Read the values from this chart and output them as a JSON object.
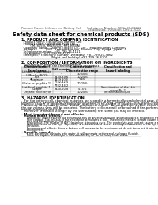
{
  "title": "Safety data sheet for chemical products (SDS)",
  "header_left": "Product Name: Lithium Ion Battery Cell",
  "header_right_line1": "Substance Number: SDS-LIB-00010",
  "header_right_line2": "Established / Revision: Dec.1.2010",
  "section1_title": "1. PRODUCT AND COMPANY IDENTIFICATION",
  "section1_items": [
    "  Product name: Lithium Ion Battery Cell",
    "  Product code: Cylindrical-type cell",
    "         (JM18650J, JM18650U, JM18650A)",
    "  Company name:    Sanyo Electric Co., Ltd.,  Mobile Energy Company",
    "  Address:         2001  Kamionakamura, Sumoto-City, Hyogo, Japan",
    "  Telephone number:  +81-799-26-4111",
    "  Fax number:  +81-799-26-4129",
    "  Emergency telephone number (Weekday) +81-799-26-3862",
    "                              (Night and holiday) +81-799-26-4101"
  ],
  "section2_title": "2. COMPOSITION / INFORMATION ON INGREDIENTS",
  "section2_intro": "  Substance or preparation: Preparation",
  "section2_subtitle": "   Information about the chemical nature of product",
  "table_headers": [
    "Chemical name /\nBrand name",
    "CAS number",
    "Concentration /\nConcentration range",
    "Classification and\nhazard labeling"
  ],
  "table_rows": [
    [
      "Lithium cobalt oxide\n(LiMnxCoxNiO2)",
      "-",
      "30-50%",
      "-"
    ],
    [
      "Iron",
      "7439-89-6",
      "10-25%",
      "-"
    ],
    [
      "Aluminum",
      "7429-90-5",
      "2-8%",
      "-"
    ],
    [
      "Graphite\n(Flake or graphite-1)\n(Artificial graphite-1)",
      "7782-42-5\n7782-44-2",
      "10-25%",
      "-"
    ],
    [
      "Copper",
      "7440-50-8",
      "5-15%",
      "Sensitization of the skin\ngroup No.2"
    ],
    [
      "Organic electrolyte",
      "-",
      "10-20%",
      "Inflammable liquid"
    ]
  ],
  "section3_title": "3. HAZARDS IDENTIFICATION",
  "section3_text": [
    "   For the battery cell, chemical materials are stored in a hermetically sealed metal case, designed to withstand",
    "temperatures generated by electrochemical-reactions during normal use. As a result, during normal use, there is no",
    "physical danger of ignition or explosion and there is no danger of hazardous materials leakage.",
    "   However, if exposed to a fire, added mechanical shocks, decompression, a short circuit or heavy-duty misuse,",
    "the gas release vent will be operated. The battery cell case will be breached if fire-performs, hazardous",
    "materials may be released.",
    "   Moreover, if heated strongly by the surrounding fire, some gas may be emitted."
  ],
  "bullet1": " Most important hazard and effects:",
  "bullet1_sub": "  Human health effects:",
  "inh": "      Inhalation: The release of the electrolyte has an anesthesia action and stimulates a respiratory tract.",
  "sk1": "      Skin contact: The release of the electrolyte stimulates a skin. The electrolyte skin contact causes a",
  "sk2": "      sore and stimulation on the skin.",
  "ey1": "      Eye contact: The release of the electrolyte stimulates eyes. The electrolyte eye contact causes a sore",
  "ey2": "      and stimulation on the eye. Especially, a substance that causes a strong inflammation of the eye is",
  "ey3": "      contained.",
  "en1": "      Environmental effects: Since a battery cell remains in the environment, do not throw out it into the",
  "en2": "      environment.",
  "bullet2": " Specific hazards:",
  "sp1": "      If the electrolyte contacts with water, it will generate detrimental hydrogen fluoride.",
  "sp2": "      Since the organic electrolyte is inflammable liquid, do not bring close to fire.",
  "bg_color": "#ffffff",
  "text_color": "#000000",
  "sep_color": "#999999",
  "table_border_color": "#888888",
  "header_text_color": "#555555"
}
